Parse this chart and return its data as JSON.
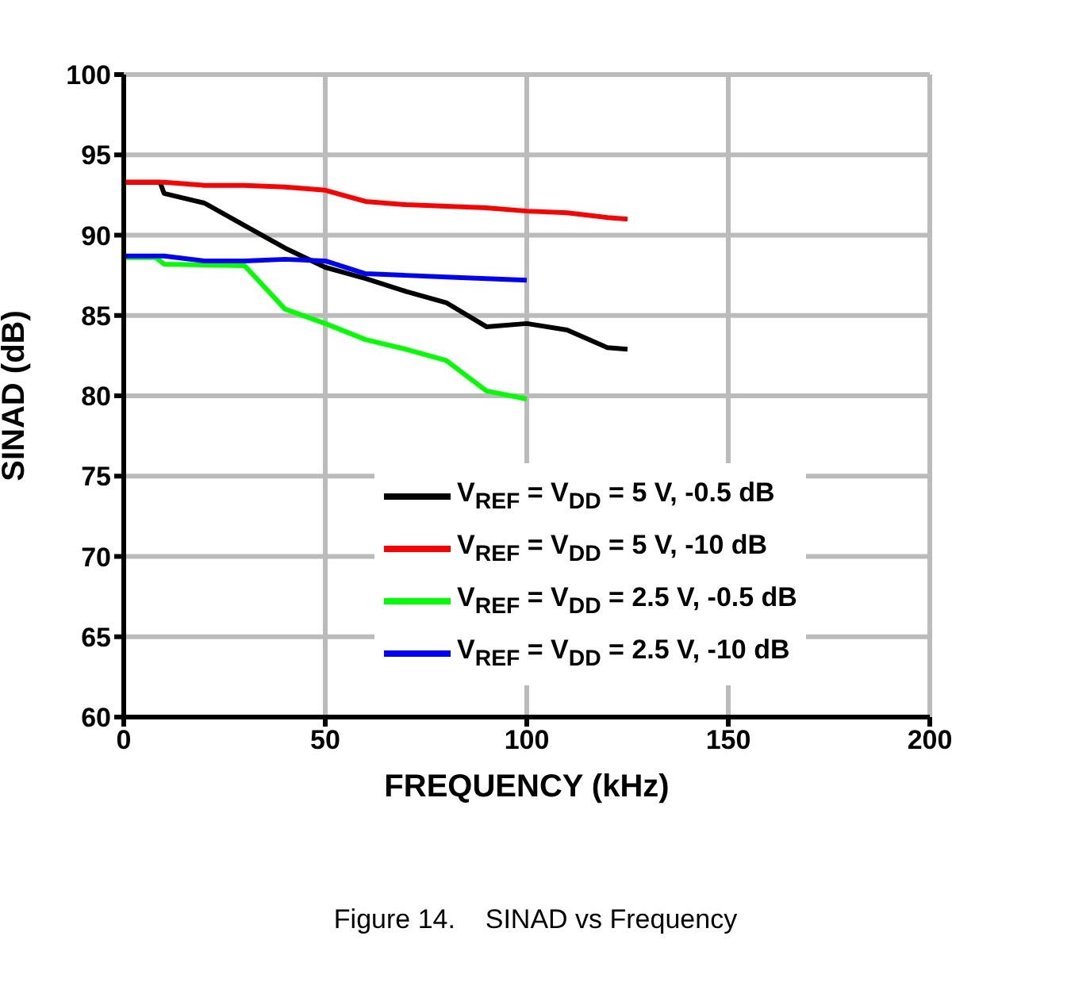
{
  "chart_data": {
    "type": "line",
    "title": "Figure 14.    SINAD vs Frequency",
    "xlabel": "FREQUENCY (kHz)",
    "ylabel": "SINAD (dB)",
    "xlim": [
      0,
      200
    ],
    "xticks": [
      0,
      50,
      100,
      150,
      200
    ],
    "ylim": [
      60,
      100
    ],
    "yticks": [
      60,
      65,
      70,
      75,
      80,
      85,
      90,
      95,
      100
    ],
    "grid": true,
    "legend": "bottom right",
    "series": [
      {
        "name": "V$_{REF}$ = V$_{DD}$ = 5 V, -0.5 dB",
        "color": "#000000",
        "x": [
          0,
          9,
          10,
          20,
          30,
          40,
          50,
          60,
          70,
          80,
          90,
          100,
          110,
          120,
          125
        ],
        "values": [
          93.3,
          93.3,
          92.6,
          92,
          90.6,
          89.2,
          88,
          87.3,
          86.5,
          85.8,
          84.3,
          84.5,
          84.1,
          83,
          82.9
        ]
      },
      {
        "name": "V$_{REF}$ = V$_{DD}$ = 5 V, -10 dB",
        "color": "#ff0000",
        "x": [
          0,
          10,
          20,
          30,
          40,
          50,
          60,
          70,
          80,
          90,
          100,
          110,
          120,
          125
        ],
        "values": [
          93.3,
          93.3,
          93.1,
          93.1,
          93,
          92.8,
          92.1,
          91.9,
          91.8,
          91.7,
          91.5,
          91.4,
          91.1,
          91
        ]
      },
      {
        "name": "V$_{REF}$ = V$_{DD}$ = 2.5 V, -0.5 dB",
        "color": "#00ff00",
        "x": [
          0,
          8,
          10,
          30,
          40,
          50,
          60,
          70,
          80,
          90,
          100
        ],
        "values": [
          88.6,
          88.6,
          88.2,
          88.1,
          85.4,
          84.5,
          83.5,
          82.9,
          82.2,
          80.3,
          79.8
        ]
      },
      {
        "name": "V$_{REF}$ = V$_{DD}$ = 2.5 V, -10 dB",
        "color": "#0000ff",
        "x": [
          0,
          10,
          20,
          30,
          40,
          50,
          60,
          70,
          80,
          90,
          100
        ],
        "values": [
          88.7,
          88.7,
          88.4,
          88.4,
          88.5,
          88.4,
          87.6,
          87.5,
          87.4,
          87.3,
          87.2
        ]
      }
    ]
  }
}
